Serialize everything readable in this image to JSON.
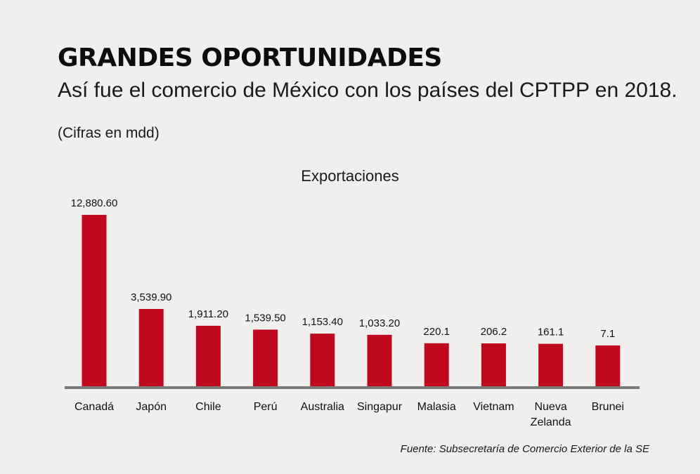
{
  "header": {
    "title": "GRANDES OPORTUNIDADES",
    "subtitle": "Así fue el comercio de México con los países del CPTPP en 2018.",
    "units": "(Cifras en mdd)"
  },
  "footer": {
    "source": "Fuente: Subsecretaría de Comercio Exterior de la SE"
  },
  "colors": {
    "bar": "#c0091f",
    "axis": "#7a7a7a",
    "background": "#f0efed"
  },
  "chart_data": {
    "type": "bar",
    "title": "Exportaciones",
    "xlabel": "",
    "ylabel": "",
    "categories": [
      "Canadá",
      "Japón",
      "Chile",
      "Perú",
      "Australia",
      "Singapur",
      "Malasia",
      "Vietnam",
      "Nueva Zelanda",
      "Brunei"
    ],
    "category_lines": [
      [
        "Canadá"
      ],
      [
        "Japón"
      ],
      [
        "Chile"
      ],
      [
        "Perú"
      ],
      [
        "Australia"
      ],
      [
        "Singapur"
      ],
      [
        "Malasia"
      ],
      [
        "Vietnam"
      ],
      [
        "Nueva",
        "Zelanda"
      ],
      [
        "Brunei"
      ]
    ],
    "values": [
      12880.6,
      3539.9,
      1911.2,
      1539.5,
      1153.4,
      1033.2,
      220.1,
      206.2,
      161.1,
      7.1
    ],
    "value_labels": [
      "12,880.60",
      "3,539.90",
      "1,911.20",
      "1,539.50",
      "1,153.40",
      "1,033.20",
      "220.1",
      "206.2",
      "161.1",
      "7.1"
    ],
    "grid": false,
    "legend": "none"
  }
}
